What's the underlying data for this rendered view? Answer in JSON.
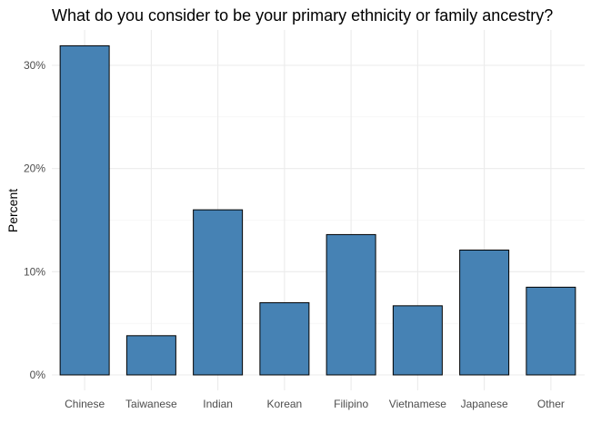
{
  "chart_data": {
    "type": "bar",
    "title": "What do you consider to be your primary ethnicity or family ancestry?",
    "xlabel": "",
    "ylabel": "Percent",
    "categories": [
      "Chinese",
      "Taiwanese",
      "Indian",
      "Korean",
      "Filipino",
      "Vietnamese",
      "Japanese",
      "Other"
    ],
    "values": [
      31.9,
      3.8,
      16.0,
      7.0,
      13.6,
      6.7,
      12.1,
      8.5
    ],
    "ylim": [
      0,
      33
    ],
    "yticks": [
      0,
      10,
      20,
      30
    ],
    "ytick_labels": [
      "0%",
      "10%",
      "20%",
      "30%"
    ],
    "grid": true,
    "legend": "none",
    "colors": {
      "bar_fill": "#4682B4",
      "bar_outline": "#000000"
    }
  }
}
